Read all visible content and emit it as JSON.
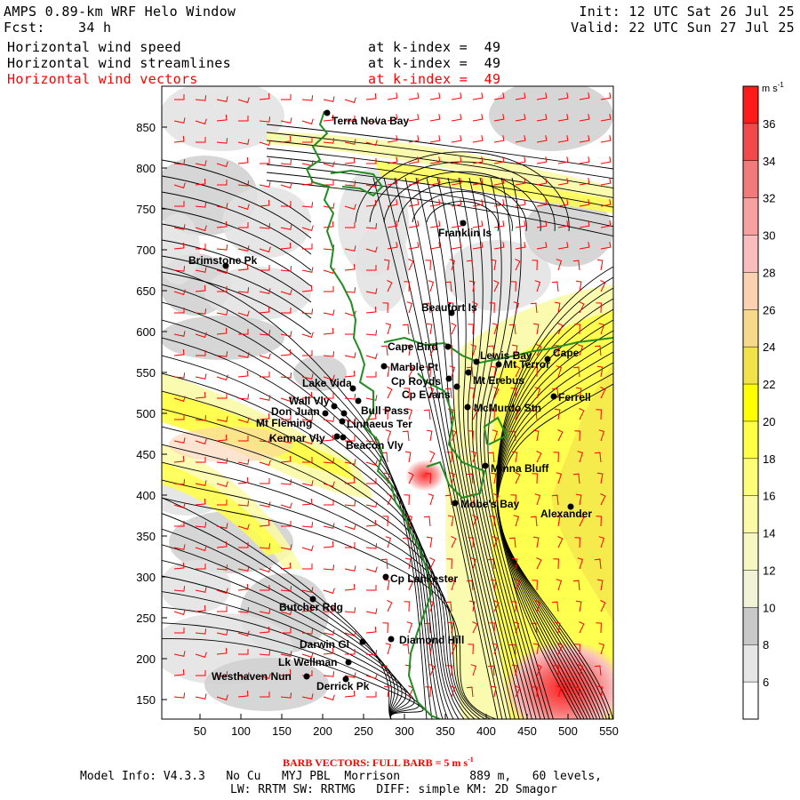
{
  "header": {
    "title": "AMPS 0.89-km WRF Helo Window",
    "fcst_label": "Fcst:",
    "fcst_value": "34 h",
    "init": "Init: 12 UTC Sat 26 Jul 25",
    "valid": "Valid: 22 UTC Sun 27 Jul 25",
    "layers": [
      {
        "name": "Horizontal wind speed",
        "level": "at k-index =  49",
        "color": "#000000"
      },
      {
        "name": "Horizontal wind streamlines",
        "level": "at k-index =  49",
        "color": "#000000"
      },
      {
        "name": "Horizontal wind vectors",
        "level": "at k-index =  49",
        "color": "#ff0000"
      }
    ]
  },
  "map": {
    "x_ticks": [
      "50",
      "100",
      "150",
      "200",
      "250",
      "300",
      "350",
      "400",
      "450",
      "500",
      "550"
    ],
    "y_ticks": [
      "150",
      "200",
      "250",
      "300",
      "350",
      "400",
      "450",
      "500",
      "550",
      "600",
      "650",
      "700",
      "750",
      "800",
      "850"
    ],
    "coast_color": "#228b22",
    "barb_color": "#ff0000",
    "places": [
      {
        "name": "Terra Nova Bay"
      },
      {
        "name": "Franklin Is"
      },
      {
        "name": "Brimstone Pk"
      },
      {
        "name": "Beaufort Is"
      },
      {
        "name": "Cape Bird"
      },
      {
        "name": "Lewis Bay"
      },
      {
        "name": "Mt Terror"
      },
      {
        "name": "Cape"
      },
      {
        "name": "Marble Pt"
      },
      {
        "name": "Mt Erebus"
      },
      {
        "name": "Lake Vida"
      },
      {
        "name": "Cp Royds"
      },
      {
        "name": "Cp Evans"
      },
      {
        "name": "Ferrell"
      },
      {
        "name": "Wall Vly"
      },
      {
        "name": "Bull Pass"
      },
      {
        "name": "McMurdo Stn"
      },
      {
        "name": "Don Juan"
      },
      {
        "name": "Mt Fleming"
      },
      {
        "name": "Linnaeus Ter"
      },
      {
        "name": "Kennar Vly"
      },
      {
        "name": "Beacon Vly"
      },
      {
        "name": "Minna Bluff"
      },
      {
        "name": "Mobe's Bay"
      },
      {
        "name": "Alexander"
      },
      {
        "name": "Cp Lankester"
      },
      {
        "name": "Butcher Rdg"
      },
      {
        "name": "Darwin Gl"
      },
      {
        "name": "Diamond Hill"
      },
      {
        "name": "Lk Wellman"
      },
      {
        "name": "Westhaven Nun"
      },
      {
        "name": "Derrick Pk"
      }
    ]
  },
  "colorbar": {
    "unit": "m s",
    "unit_exp": "-1",
    "levels": [
      "6",
      "8",
      "10",
      "12",
      "14",
      "16",
      "18",
      "20",
      "22",
      "24",
      "26",
      "28",
      "30",
      "32",
      "34",
      "36"
    ],
    "colors": [
      "#ffffff",
      "#e6e6e6",
      "#c8c8c8",
      "#f2f2d6",
      "#f7f7c2",
      "#fbfba6",
      "#fdfd7a",
      "#ffff46",
      "#ffff00",
      "#f2e24a",
      "#f7d98a",
      "#fad2b2",
      "#fabcbc",
      "#f7a0a0",
      "#f27a7a",
      "#f24a4a",
      "#ff1a1a"
    ]
  },
  "footer": {
    "barb_note": "BARB VECTORS:  FULL BARB = 5 m s",
    "barb_note_exp": "-1",
    "model_info": "Model Info: V4.3.3   No Cu   MYJ PBL  Morrison          889 m,   60 levels,",
    "physics": "LW: RRTM SW: RRTMG   DIFF: simple KM: 2D Smagor"
  }
}
